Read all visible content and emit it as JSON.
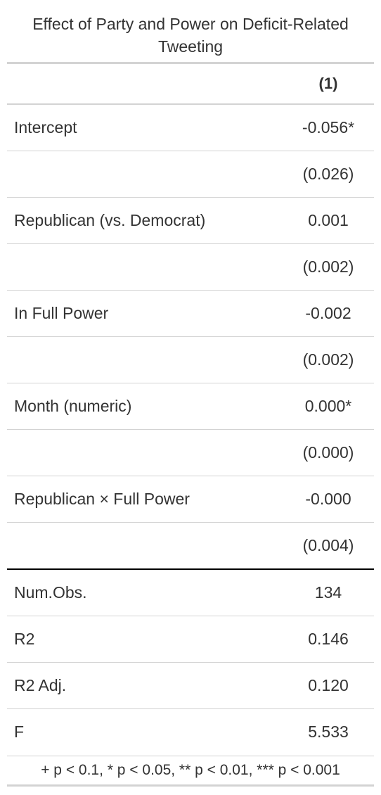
{
  "table": {
    "title": "Effect of Party and Power on Deficit-Related Tweeting",
    "column_header": "(1)",
    "coefficients": [
      {
        "label": "Intercept",
        "estimate": "-0.056*",
        "se": "(0.026)"
      },
      {
        "label": "Republican (vs. Democrat)",
        "estimate": "0.001",
        "se": "(0.002)"
      },
      {
        "label": "In Full Power",
        "estimate": "-0.002",
        "se": "(0.002)"
      },
      {
        "label": "Month (numeric)",
        "estimate": "0.000*",
        "se": "(0.000)"
      },
      {
        "label": "Republican × Full Power",
        "estimate": "-0.000",
        "se": "(0.004)"
      }
    ],
    "statistics": [
      {
        "label": "Num.Obs.",
        "value": "134"
      },
      {
        "label": "R2",
        "value": "0.146"
      },
      {
        "label": "R2 Adj.",
        "value": "0.120"
      },
      {
        "label": "F",
        "value": "5.533"
      }
    ],
    "footnote": "+ p < 0.1, * p < 0.05, ** p < 0.01, *** p < 0.001"
  },
  "colors": {
    "text": "#333333",
    "rule_light": "#d3d3d3",
    "rule_dark": "#000000"
  }
}
